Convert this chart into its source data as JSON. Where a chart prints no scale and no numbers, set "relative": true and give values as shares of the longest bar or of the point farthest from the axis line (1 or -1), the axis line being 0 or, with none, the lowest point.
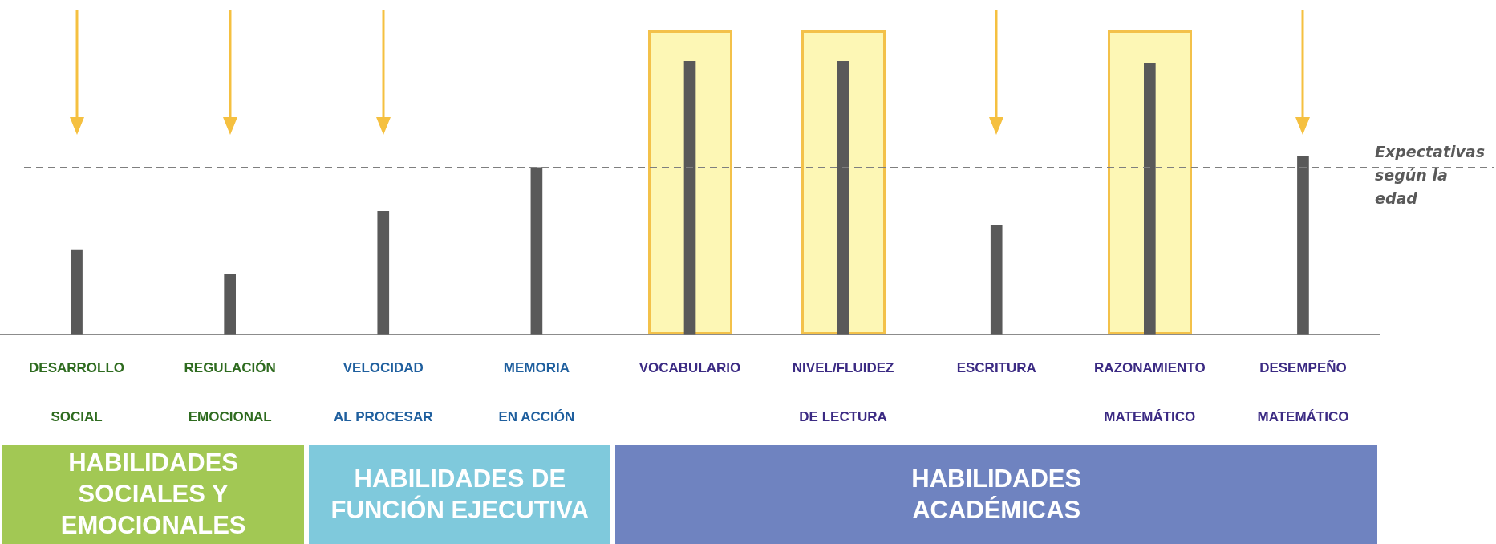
{
  "chart_data": {
    "type": "bar",
    "categories": [
      "DESARROLLO\nSOCIAL",
      "REGULACIÓN\nEMOCIONAL",
      "VELOCIDAD\nAL PROCESAR",
      "MEMORIA\nEN ACCIÓN",
      "VOCABULARIO",
      "NIVEL/FLUIDEZ\nDE LECTURA",
      "ESCRITURA",
      "RAZONAMIENTO\nMATEMÁTICO",
      "DESEMPEÑO\nMATEMÁTICO"
    ],
    "values": [
      0.31,
      0.22,
      0.45,
      0.61,
      1,
      1,
      0.4,
      0.99,
      0.65
    ],
    "bands": [
      {
        "axis": "x",
        "from": "VOCABULARIO",
        "to": "VOCABULARIO",
        "color": "#fdf7b5"
      },
      {
        "axis": "x",
        "from": "NIVEL/FLUIDEZ\nDE LECTURA",
        "to": "NIVEL/FLUIDEZ\nDE LECTURA",
        "color": "#fdf7b5"
      },
      {
        "axis": "x",
        "from": "RAZONAMIENTO\nMATEMÁTICO",
        "to": "RAZONAMIENTO\nMATEMÁTICO",
        "color": "#fdf7b5"
      }
    ],
    "color": "#595959",
    "relative": true,
    "ref_lines": [
      {
        "axis": "y",
        "value": 0.61,
        "label": "Expectativas según la edad",
        "color": "#7f7f7f",
        "line_style": "dashed"
      }
    ],
    "annotations": [
      "HABILIDADES SOCIALES Y EMOCIONALES",
      "HABILIDADES DE FUNCIÓN EJECUTIVA",
      "HABILIDADES ACADÉMICAS"
    ]
  }
}
